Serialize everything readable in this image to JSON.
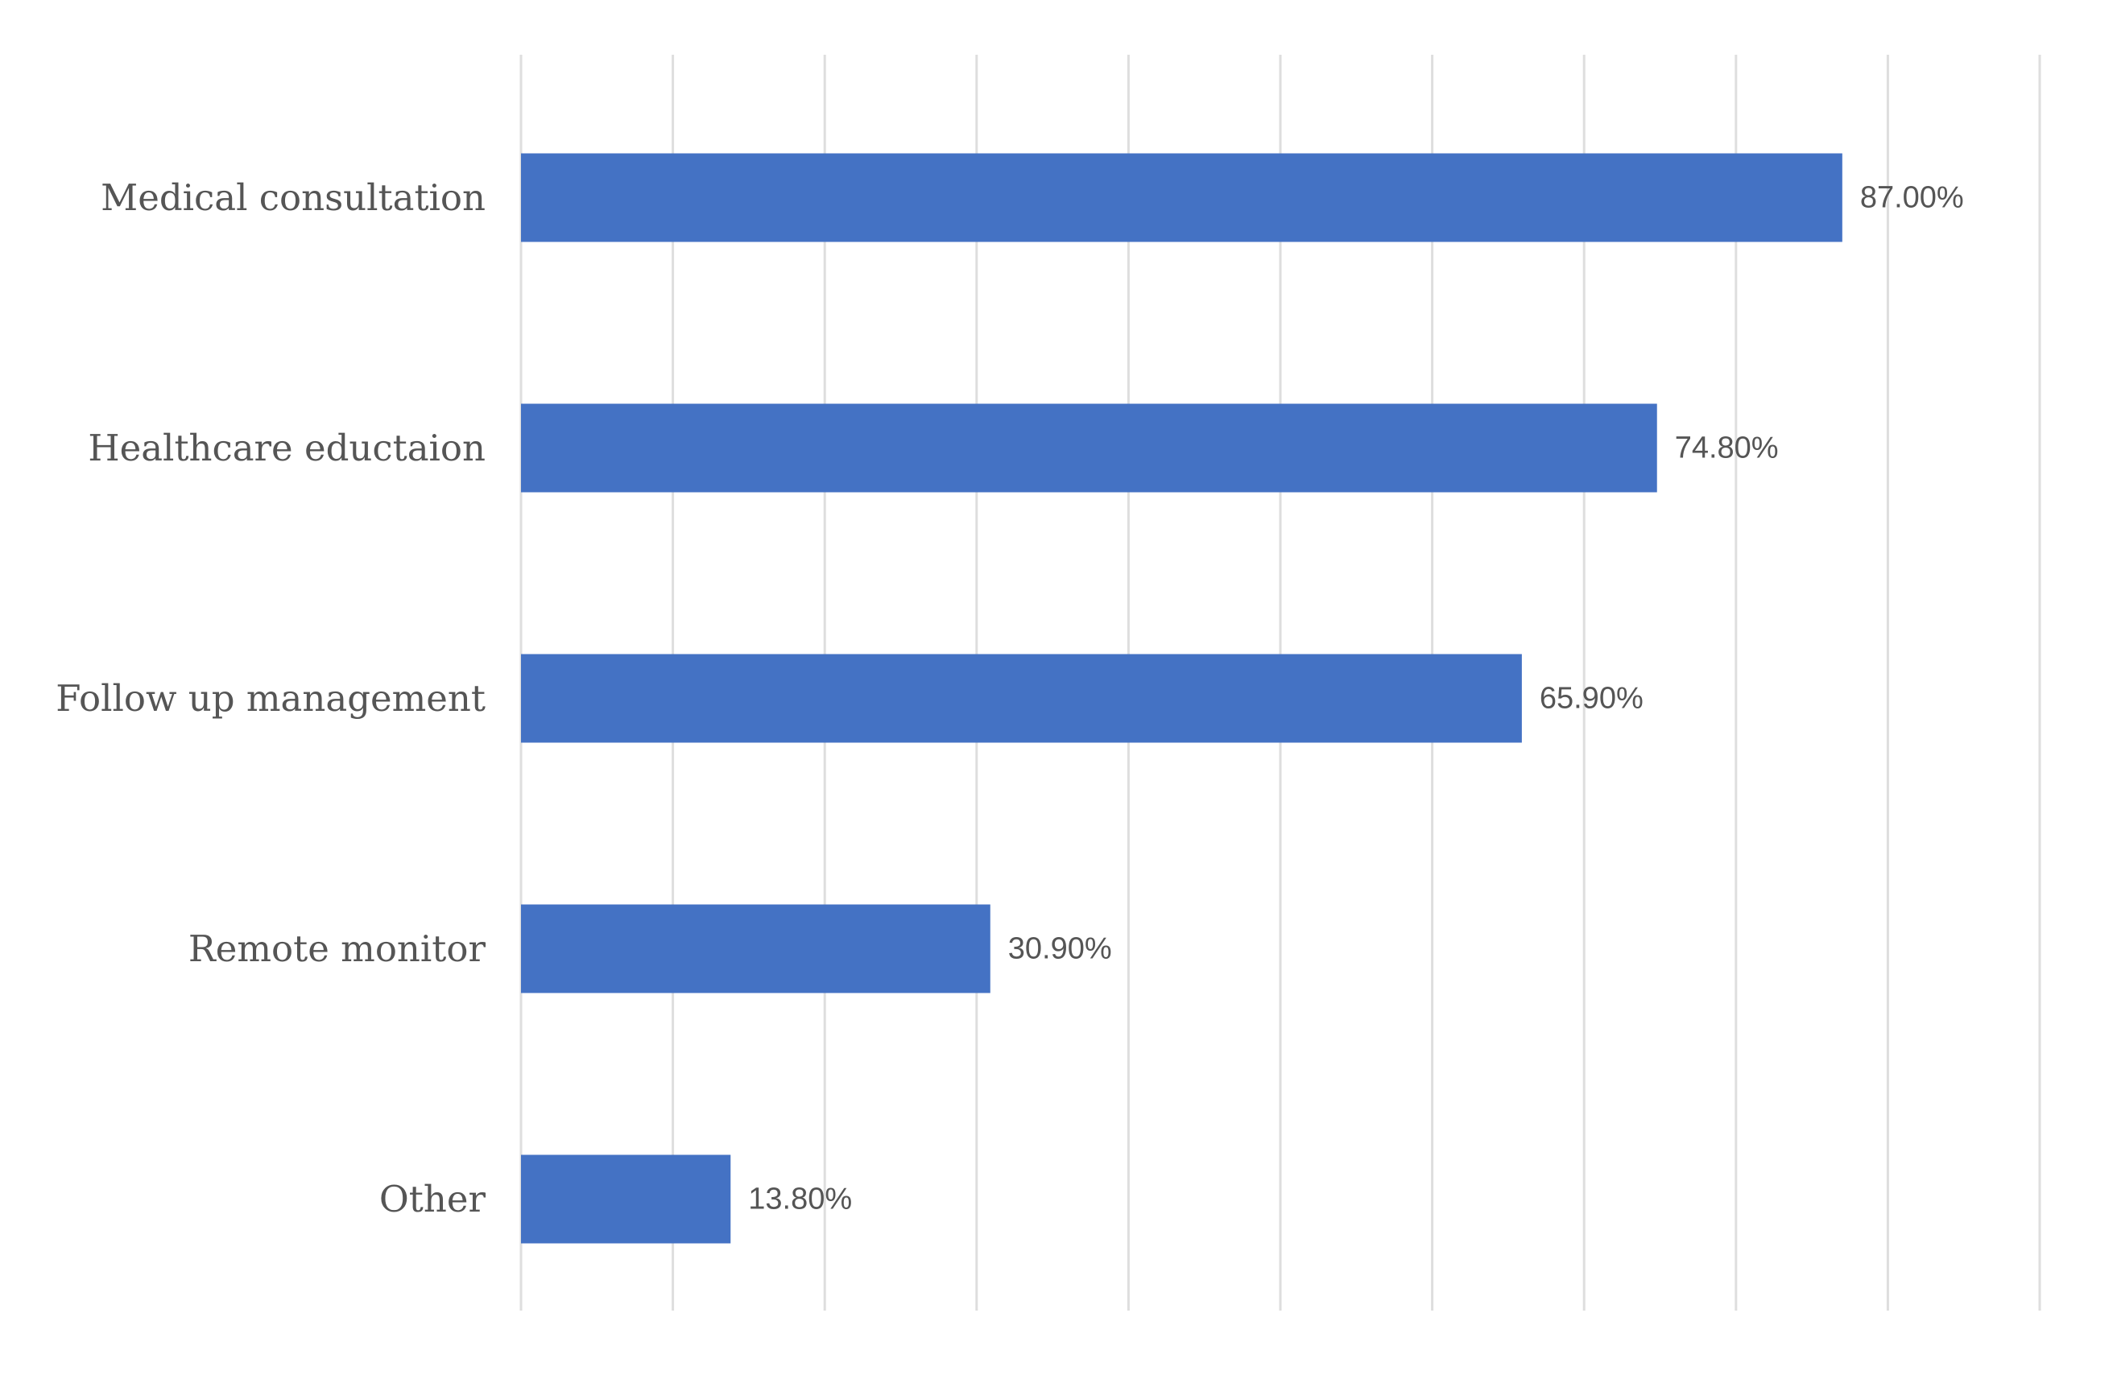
{
  "chart_data": {
    "type": "bar",
    "orientation": "horizontal",
    "categories": [
      "Medical consultation",
      "Healthcare eductaion",
      "Follow up management",
      "Remote monitor",
      "Other"
    ],
    "values": [
      87.0,
      74.8,
      65.9,
      30.9,
      13.8
    ],
    "value_labels": [
      "87.00%",
      "74.80%",
      "65.90%",
      "30.90%",
      "13.80%"
    ],
    "xlim": [
      0,
      100
    ],
    "x_tick_step": 10,
    "grid": "vertical",
    "bar_color": "#4472c4",
    "legend": "none"
  }
}
